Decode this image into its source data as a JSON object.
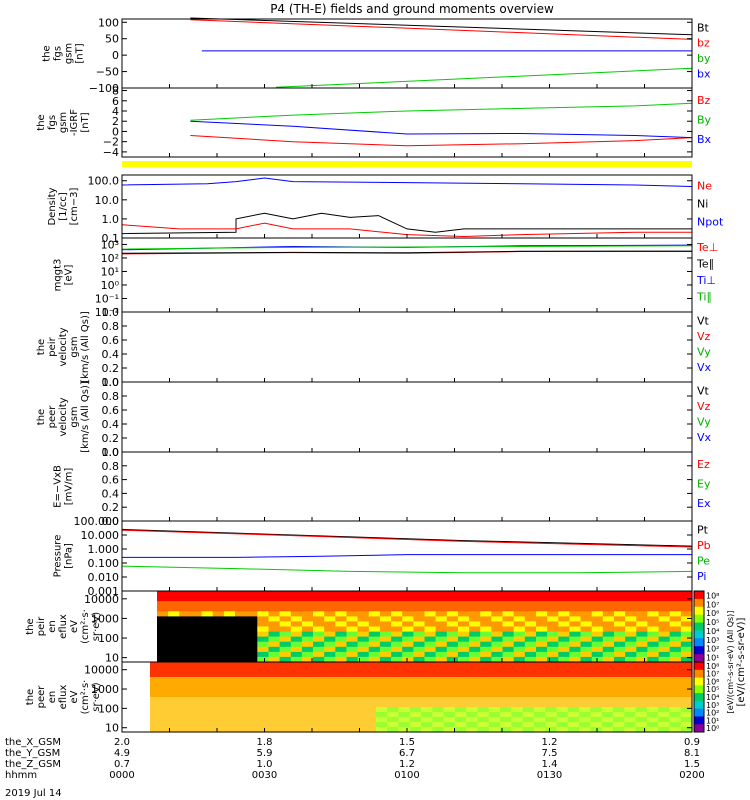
{
  "title": "P4 (TH-E) fields and ground moments overview",
  "date_label": "2019 Jul 14",
  "colors": {
    "black": "#000000",
    "red": "#ff0000",
    "green": "#00cc00",
    "blue": "#0000ff",
    "yellow": "#ffff00",
    "green_label": "#00b000"
  },
  "chart_data": [
    {
      "id": "fgs",
      "type": "line",
      "ylabel": [
        "the",
        "fgs",
        "gsm",
        "[nT]"
      ],
      "yticks": [
        "100",
        "50",
        "0",
        "−50",
        "−100"
      ],
      "ylim": [
        -100,
        110
      ],
      "tick_values": [
        100,
        50,
        0,
        -50,
        -100
      ],
      "legend": [
        {
          "label": "Bt",
          "color": "#000000"
        },
        {
          "label": "bz",
          "color": "#ff0000"
        },
        {
          "label": "by",
          "color": "#00b000"
        },
        {
          "label": "bx",
          "color": "#0000ff"
        }
      ],
      "series": [
        {
          "name": "Bt",
          "color": "#000000",
          "x": [
            0.12,
            1.0
          ],
          "y": [
            113,
            62
          ]
        },
        {
          "name": "bz",
          "color": "#ff0000",
          "x": [
            0.12,
            1.0
          ],
          "y": [
            108,
            48
          ]
        },
        {
          "name": "by",
          "color": "#00cc00",
          "x": [
            0.27,
            1.0
          ],
          "y": [
            -98,
            -40
          ]
        },
        {
          "name": "bx",
          "color": "#0000ff",
          "x": [
            0.14,
            1.0
          ],
          "y": [
            13,
            13
          ]
        }
      ]
    },
    {
      "id": "fgs_dsl",
      "type": "line",
      "ylabel": [
        "the",
        "fgs",
        "gsm",
        "-IGRF",
        "[nT]"
      ],
      "yticks": [
        "8",
        "6",
        "4",
        "2",
        "0",
        "−2",
        "−4"
      ],
      "ylim": [
        -5,
        8.5
      ],
      "tick_values": [
        8,
        6,
        4,
        2,
        0,
        -2,
        -4
      ],
      "legend": [
        {
          "label": "Bz",
          "color": "#ff0000"
        },
        {
          "label": "By",
          "color": "#00b000"
        },
        {
          "label": "Bx",
          "color": "#0000ff"
        }
      ],
      "series": [
        {
          "name": "Bz",
          "color": "#ff0000",
          "x": [
            0.12,
            0.3,
            0.5,
            0.7,
            0.9,
            1.0
          ],
          "y": [
            -0.8,
            -2.0,
            -2.8,
            -2.4,
            -1.8,
            -1.2
          ]
        },
        {
          "name": "By",
          "color": "#00cc00",
          "x": [
            0.12,
            0.3,
            0.5,
            0.7,
            0.9,
            1.0
          ],
          "y": [
            2.2,
            3.2,
            4.0,
            4.5,
            5.0,
            5.5
          ]
        },
        {
          "name": "Bx",
          "color": "#0000ff",
          "x": [
            0.12,
            0.3,
            0.5,
            0.7,
            0.9,
            1.0
          ],
          "y": [
            2.0,
            1.0,
            -0.5,
            -0.4,
            -0.8,
            -1.2
          ]
        }
      ]
    },
    {
      "id": "density",
      "type": "line",
      "ylabel": [
        "Density",
        "[1/cc]",
        "[cm−3]"
      ],
      "yticks": [
        "100.0",
        "10.0",
        "1.0",
        "0.1"
      ],
      "ylim": [
        0.1,
        200
      ],
      "tick_values": [
        100,
        10,
        1,
        0.1
      ],
      "log": true,
      "legend": [
        {
          "label": "Ne",
          "color": "#ff0000"
        },
        {
          "label": "Ni",
          "color": "#000000"
        },
        {
          "label": "Npot",
          "color": "#0000ff"
        }
      ],
      "series": [
        {
          "name": "Npot",
          "color": "#0000ff",
          "x": [
            0.0,
            0.15,
            0.2,
            0.25,
            0.3,
            0.5,
            0.7,
            0.9,
            1.0
          ],
          "y": [
            60,
            70,
            90,
            140,
            90,
            80,
            70,
            60,
            50
          ]
        },
        {
          "name": "Ni",
          "color": "#000000",
          "x": [
            0.0,
            0.2,
            0.2,
            0.25,
            0.3,
            0.35,
            0.4,
            0.45,
            0.5,
            0.55,
            0.6,
            1.0
          ],
          "y": [
            0.17,
            0.2,
            1.0,
            2.0,
            1.0,
            2.0,
            1.2,
            1.5,
            0.3,
            0.2,
            0.3,
            0.3
          ]
        },
        {
          "name": "Ne",
          "color": "#ff0000",
          "x": [
            0.0,
            0.1,
            0.2,
            0.25,
            0.3,
            0.4,
            0.5,
            0.6,
            0.7,
            0.9,
            1.0
          ],
          "y": [
            0.5,
            0.3,
            0.3,
            0.6,
            0.3,
            0.3,
            0.15,
            0.12,
            0.15,
            0.2,
            0.2
          ]
        }
      ]
    },
    {
      "id": "temperature",
      "type": "line",
      "ylabel": [
        "mqgt3",
        "[eV]"
      ],
      "yticks": [
        "10³",
        "10²",
        "10¹",
        "10⁰",
        "10⁻¹",
        "10⁻²"
      ],
      "ylim": [
        0.01,
        3000
      ],
      "tick_values": [
        1000,
        100,
        10,
        1,
        0.1,
        0.01
      ],
      "log": true,
      "legend": [
        {
          "label": "Te⊥",
          "color": "#ff0000"
        },
        {
          "label": "Te∥",
          "color": "#000000"
        },
        {
          "label": "Ti⊥",
          "color": "#0000ff"
        },
        {
          "label": "Ti∥",
          "color": "#00b000"
        }
      ],
      "series": [
        {
          "name": "Ti",
          "color": "#0000ff",
          "x": [
            0.0,
            0.3,
            0.5,
            0.7,
            1.0
          ],
          "y": [
            400,
            700,
            600,
            800,
            900
          ]
        },
        {
          "name": "Ti_par",
          "color": "#00cc00",
          "x": [
            0.0,
            0.3,
            0.5,
            0.7,
            1.0
          ],
          "y": [
            450,
            600,
            650,
            700,
            800
          ]
        },
        {
          "name": "Te",
          "color": "#ff0000",
          "x": [
            0.0,
            0.3,
            0.5,
            0.7,
            1.0
          ],
          "y": [
            200,
            250,
            220,
            300,
            300
          ]
        },
        {
          "name": "Te_par",
          "color": "#000000",
          "x": [
            0.0,
            0.3,
            0.5,
            0.7,
            1.0
          ],
          "y": [
            220,
            260,
            240,
            310,
            320
          ]
        }
      ]
    },
    {
      "id": "peir_velocity",
      "type": "line",
      "ylabel": [
        "the",
        "peir",
        "velocity",
        "gsm",
        "[km/s (All Qs)]"
      ],
      "yticks": [
        "1.0",
        "0.8",
        "0.6",
        "0.4",
        "0.2",
        "0.0"
      ],
      "ylim": [
        0,
        1
      ],
      "tick_values": [
        1.0,
        0.8,
        0.6,
        0.4,
        0.2,
        0.0
      ],
      "legend": [
        {
          "label": "Vt",
          "color": "#000000"
        },
        {
          "label": "Vz",
          "color": "#ff0000"
        },
        {
          "label": "Vy",
          "color": "#00b000"
        },
        {
          "label": "Vx",
          "color": "#0000ff"
        }
      ],
      "series": []
    },
    {
      "id": "peer_velocity",
      "type": "line",
      "ylabel": [
        "the",
        "peer",
        "velocity",
        "gsm",
        "[km/s (All Qs)]"
      ],
      "yticks": [
        "1.0",
        "0.8",
        "0.6",
        "0.4",
        "0.2",
        "0.0"
      ],
      "ylim": [
        0,
        1
      ],
      "tick_values": [
        1.0,
        0.8,
        0.6,
        0.4,
        0.2,
        0.0
      ],
      "legend": [
        {
          "label": "Vt",
          "color": "#000000"
        },
        {
          "label": "Vz",
          "color": "#ff0000"
        },
        {
          "label": "Vy",
          "color": "#00b000"
        },
        {
          "label": "Vx",
          "color": "#0000ff"
        }
      ],
      "series": []
    },
    {
      "id": "efield",
      "type": "line",
      "ylabel": [
        "E=−VxB",
        "[mV/m]"
      ],
      "yticks": [
        "1.0",
        "0.8",
        "0.6",
        "0.4",
        "0.2",
        "0.0"
      ],
      "ylim": [
        0,
        1
      ],
      "tick_values": [
        1.0,
        0.8,
        0.6,
        0.4,
        0.2,
        0.0
      ],
      "legend": [
        {
          "label": "Ez",
          "color": "#ff0000"
        },
        {
          "label": "Ey",
          "color": "#00b000"
        },
        {
          "label": "Ex",
          "color": "#0000ff"
        }
      ],
      "series": []
    },
    {
      "id": "pressure",
      "type": "line",
      "ylabel": [
        "Pressure",
        "[nPa]"
      ],
      "yticks": [
        "100.000",
        "10.000",
        "1.000",
        "0.100",
        "0.010",
        "0.001"
      ],
      "ylim": [
        0.001,
        100
      ],
      "tick_values": [
        100,
        10,
        1,
        0.1,
        0.01,
        0.001
      ],
      "log": true,
      "legend": [
        {
          "label": "Pt",
          "color": "#000000"
        },
        {
          "label": "Pb",
          "color": "#ff0000"
        },
        {
          "label": "Pe",
          "color": "#00b000"
        },
        {
          "label": "Pi",
          "color": "#0000ff"
        }
      ],
      "series": [
        {
          "name": "Pt",
          "color": "#000000",
          "x": [
            0.0,
            0.3,
            0.6,
            1.0
          ],
          "y": [
            25,
            10,
            4,
            1.6
          ]
        },
        {
          "name": "Pb",
          "color": "#ff0000",
          "x": [
            0.0,
            0.3,
            0.6,
            1.0
          ],
          "y": [
            22,
            9,
            3.5,
            1.4
          ]
        },
        {
          "name": "Pi",
          "color": "#0000ff",
          "x": [
            0.0,
            0.2,
            0.35,
            0.5,
            0.7,
            1.0
          ],
          "y": [
            0.25,
            0.25,
            0.3,
            0.4,
            0.4,
            0.4
          ]
        },
        {
          "name": "Pe",
          "color": "#00cc00",
          "x": [
            0.0,
            0.2,
            0.4,
            0.6,
            0.8,
            1.0
          ],
          "y": [
            0.06,
            0.04,
            0.025,
            0.02,
            0.02,
            0.025
          ]
        }
      ]
    },
    {
      "id": "peir_spec",
      "type": "heatmap",
      "ylabel": [
        "the",
        "peir",
        "en",
        "eflux",
        "eV",
        "(cm²·s·",
        "sr·eV)"
      ],
      "yticks": [
        "10000",
        "1000",
        "100",
        "10"
      ],
      "ylim": [
        6,
        25000
      ],
      "tick_values": [
        10000,
        1000,
        100,
        10
      ],
      "log": true
    },
    {
      "id": "peer_spec",
      "type": "heatmap",
      "ylabel": [
        "the",
        "peer",
        "en",
        "eflux",
        "eV",
        "(cm²·s·",
        "sr·eV)"
      ],
      "yticks": [
        "10000",
        "1000",
        "100",
        "10"
      ],
      "ylim": [
        6,
        25000
      ],
      "tick_values": [
        10000,
        1000,
        100,
        10
      ],
      "log": true
    }
  ],
  "colorbars": [
    {
      "ticks": [
        "10⁸",
        "10⁷",
        "10⁶",
        "10⁵",
        "10⁴",
        "10³",
        "10²",
        "10¹"
      ]
    },
    {
      "ticks": [
        "10⁸",
        "10⁷",
        "10⁶",
        "10⁵",
        "10⁴",
        "10³",
        "10²",
        "10¹",
        "10⁰"
      ]
    }
  ],
  "colorbar_label": "[eV/(cm²-s-sr-eV)]",
  "colorbar_label2": "[eV/(cm²-s-sr-eV) (All Qs)]",
  "x_axis": {
    "row_labels": [
      "the_X_GSM",
      "the_Y_GSM",
      "the_Z_GSM",
      "hhmm"
    ],
    "columns": [
      {
        "x": 0.0,
        "values": [
          "2.0",
          "4.9",
          "0.7",
          "0000"
        ]
      },
      {
        "x": 0.25,
        "values": [
          "1.8",
          "5.9",
          "1.0",
          "0030"
        ]
      },
      {
        "x": 0.5,
        "values": [
          "1.5",
          "6.7",
          "1.2",
          "0100"
        ]
      },
      {
        "x": 0.75,
        "values": [
          "1.2",
          "7.5",
          "1.4",
          "0130"
        ]
      },
      {
        "x": 1.0,
        "values": [
          "0.9",
          "8.1",
          "1.5",
          "0200"
        ]
      }
    ]
  }
}
